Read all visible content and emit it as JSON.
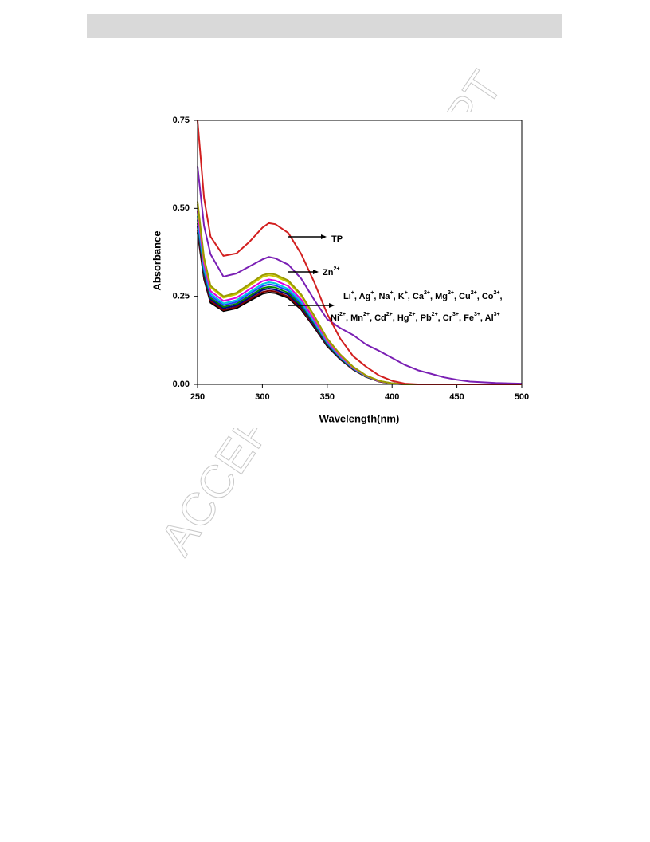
{
  "watermark": "ACCEPTED MANUSCRIPT",
  "chart_data": {
    "type": "line",
    "x_label": "Wavelength(nm)",
    "y_label": "Absorbance",
    "x": [
      250,
      255,
      260,
      270,
      280,
      290,
      300,
      305,
      310,
      320,
      330,
      340,
      350,
      360,
      370,
      380,
      390,
      400,
      410,
      420,
      430,
      440,
      450,
      460,
      480,
      500
    ],
    "xlim": [
      250,
      500
    ],
    "xticks": [
      250,
      300,
      350,
      400,
      450,
      500
    ],
    "ylim": [
      0,
      0.75
    ],
    "yticks": [
      {
        "value": 0,
        "label": "0.00"
      },
      {
        "value": 0.25,
        "label": "0.25"
      },
      {
        "value": 0.5,
        "label": "0.50"
      },
      {
        "value": 0.75,
        "label": "0.75"
      }
    ],
    "series": [
      {
        "color": "#000000",
        "values": [
          0.432,
          0.299,
          0.232,
          0.208,
          0.216,
          0.237,
          0.257,
          0.261,
          0.259,
          0.245,
          0.212,
          0.162,
          0.108,
          0.071,
          0.042,
          0.021,
          0.008,
          0.002,
          0,
          0,
          0,
          0,
          0,
          0,
          0,
          0
        ]
      },
      {
        "color": "#800000",
        "values": [
          0.439,
          0.304,
          0.237,
          0.211,
          0.22,
          0.241,
          0.262,
          0.266,
          0.264,
          0.249,
          0.215,
          0.165,
          0.11,
          0.072,
          0.042,
          0.021,
          0.008,
          0.003,
          0,
          0,
          0,
          0,
          0,
          0,
          0,
          0
        ]
      },
      {
        "color": "#000080",
        "values": [
          0.449,
          0.311,
          0.242,
          0.216,
          0.224,
          0.246,
          0.268,
          0.272,
          0.269,
          0.255,
          0.22,
          0.168,
          0.112,
          0.073,
          0.043,
          0.022,
          0.009,
          0.003,
          0,
          0,
          0,
          0,
          0,
          0,
          0,
          0
        ]
      },
      {
        "color": "#008000",
        "values": [
          0.458,
          0.317,
          0.246,
          0.22,
          0.229,
          0.251,
          0.273,
          0.277,
          0.275,
          0.26,
          0.224,
          0.172,
          0.114,
          0.075,
          0.044,
          0.022,
          0.009,
          0.003,
          0,
          0,
          0,
          0,
          0,
          0,
          0,
          0
        ]
      },
      {
        "color": "#2040ff",
        "values": [
          0.468,
          0.324,
          0.252,
          0.225,
          0.234,
          0.257,
          0.279,
          0.284,
          0.281,
          0.266,
          0.23,
          0.176,
          0.117,
          0.077,
          0.045,
          0.023,
          0.009,
          0.003,
          0,
          0,
          0,
          0,
          0,
          0,
          0,
          0
        ]
      },
      {
        "color": "#00c8e0",
        "values": [
          0.478,
          0.331,
          0.258,
          0.23,
          0.239,
          0.262,
          0.285,
          0.29,
          0.287,
          0.271,
          0.235,
          0.179,
          0.12,
          0.078,
          0.046,
          0.023,
          0.009,
          0.003,
          0,
          0,
          0,
          0,
          0,
          0,
          0,
          0
        ]
      },
      {
        "color": "#e000e0",
        "values": [
          0.492,
          0.341,
          0.265,
          0.237,
          0.246,
          0.27,
          0.293,
          0.298,
          0.295,
          0.279,
          0.241,
          0.184,
          0.123,
          0.08,
          0.047,
          0.024,
          0.009,
          0.003,
          0,
          0,
          0,
          0,
          0,
          0,
          0,
          0
        ]
      },
      {
        "color": "#c8c800",
        "values": [
          0.512,
          0.354,
          0.276,
          0.246,
          0.256,
          0.28,
          0.305,
          0.31,
          0.307,
          0.29,
          0.251,
          0.192,
          0.128,
          0.084,
          0.049,
          0.025,
          0.01,
          0.003,
          0,
          0,
          0,
          0,
          0,
          0,
          0,
          0
        ]
      },
      {
        "color": "#9a9a00",
        "values": [
          0.52,
          0.36,
          0.28,
          0.25,
          0.26,
          0.285,
          0.31,
          0.315,
          0.312,
          0.295,
          0.255,
          0.195,
          0.13,
          0.085,
          0.05,
          0.025,
          0.01,
          0.003,
          0,
          0,
          0,
          0,
          0,
          0,
          0,
          0
        ]
      },
      {
        "name": "Zn2+",
        "color": "#7a1fb4",
        "values": [
          0.62,
          0.45,
          0.37,
          0.306,
          0.315,
          0.335,
          0.355,
          0.362,
          0.358,
          0.34,
          0.3,
          0.24,
          0.185,
          0.16,
          0.14,
          0.113,
          0.095,
          0.075,
          0.055,
          0.04,
          0.03,
          0.02,
          0.013,
          0.008,
          0.004,
          0.002
        ]
      },
      {
        "name": "TP",
        "color": "#d21f1f",
        "values": [
          0.75,
          0.53,
          0.42,
          0.365,
          0.372,
          0.405,
          0.445,
          0.458,
          0.455,
          0.43,
          0.37,
          0.29,
          0.2,
          0.13,
          0.08,
          0.05,
          0.025,
          0.01,
          0.002,
          0,
          0,
          0,
          0,
          0,
          0,
          0
        ]
      }
    ],
    "annotations": [
      {
        "parts": [
          {
            "text": "TP"
          }
        ]
      },
      {
        "parts": [
          {
            "text": "Zn"
          },
          {
            "sup": "2+"
          }
        ]
      },
      {
        "parts": [
          {
            "text": "Li"
          },
          {
            "sup": "+"
          },
          {
            "text": ", Ag"
          },
          {
            "sup": "+"
          },
          {
            "text": ", Na"
          },
          {
            "sup": "+"
          },
          {
            "text": ", K"
          },
          {
            "sup": "+"
          },
          {
            "text": ", Ca"
          },
          {
            "sup": "2+"
          },
          {
            "text": ", Mg"
          },
          {
            "sup": "2+"
          },
          {
            "text": ", Cu"
          },
          {
            "sup": "2+"
          },
          {
            "text": ", Co"
          },
          {
            "sup": "2+"
          },
          {
            "text": ","
          }
        ]
      },
      {
        "parts": [
          {
            "text": "Ni"
          },
          {
            "sup": "2+"
          },
          {
            "text": ", Mn"
          },
          {
            "sup": "2+"
          },
          {
            "text": ", Cd"
          },
          {
            "sup": "2+"
          },
          {
            "text": ", Hg"
          },
          {
            "sup": "2+"
          },
          {
            "text": ", Pb"
          },
          {
            "sup": "2+"
          },
          {
            "text": ", Cr"
          },
          {
            "sup": "3+"
          },
          {
            "text": ", Fe"
          },
          {
            "sup": "3+"
          },
          {
            "text": ", Al"
          },
          {
            "sup": "3+"
          }
        ]
      }
    ]
  }
}
